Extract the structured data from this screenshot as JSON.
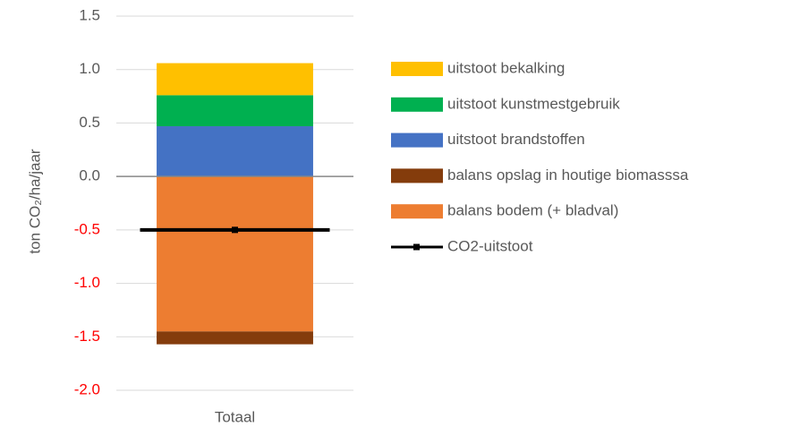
{
  "chart_data": {
    "type": "stacked_bar",
    "categories": [
      "Totaal"
    ],
    "y_label": "ton CO₂/ha/jaar",
    "ylim": [
      -2,
      1.5
    ],
    "yticks": [
      {
        "value": -2,
        "label": "-2.0"
      },
      {
        "value": -1.5,
        "label": "-1.5"
      },
      {
        "value": -1,
        "label": "-1.0"
      },
      {
        "value": -0.5,
        "label": "-0.5"
      },
      {
        "value": 0,
        "label": "0.0"
      },
      {
        "value": 0.5,
        "label": "0.5"
      },
      {
        "value": 1,
        "label": "1.0"
      },
      {
        "value": 1.5,
        "label": "1.5"
      }
    ],
    "grid": true,
    "negative_tick_color": "#ff0000",
    "legend": "right",
    "series": [
      {
        "name": "balans bodem (+ bladval)",
        "color": "#ed7d31",
        "values": [
          -1.45
        ]
      },
      {
        "name": "balans opslag in houtige biomasssa",
        "color": "#843c0c",
        "values": [
          -0.12
        ]
      },
      {
        "name": "uitstoot brandstoffen",
        "color": "#4472c4",
        "values": [
          0.47
        ]
      },
      {
        "name": "uitstoot kunstmestgebruik",
        "color": "#00b050",
        "values": [
          0.29
        ]
      },
      {
        "name": "uitstoot bekalking",
        "color": "#ffc000",
        "values": [
          0.3
        ]
      },
      {
        "name": "CO2-uitstoot",
        "color": "#000000",
        "type": "line",
        "values": [
          -0.5
        ]
      }
    ]
  }
}
